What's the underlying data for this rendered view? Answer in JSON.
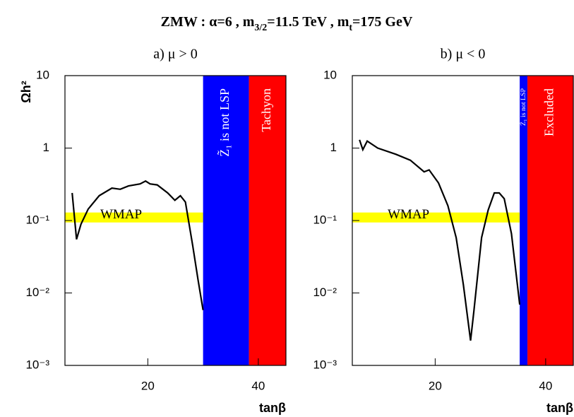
{
  "title": [
    {
      "text": "ZMW : α=6 ,  m"
    },
    {
      "text": "3/2",
      "sub": true
    },
    {
      "text": "=11.5 TeV ,  m"
    },
    {
      "text": "t",
      "sub": true
    },
    {
      "text": "=175 GeV"
    }
  ],
  "chart_data": [
    {
      "type": "line",
      "subtitle": "a)  μ > 0",
      "xlabel": "tanβ",
      "ylabel": "Ωh²",
      "xlim": [
        5,
        45
      ],
      "xticks": [
        20,
        40
      ],
      "ylim": [
        0.001,
        10
      ],
      "log_y": true,
      "yticks": [
        {
          "value": 10,
          "label": "10"
        },
        {
          "value": 1,
          "label": "1"
        },
        {
          "value": 0.1,
          "label": "10⁻¹"
        },
        {
          "value": 0.01,
          "label": "10⁻²"
        },
        {
          "value": 0.001,
          "label": "10⁻³"
        }
      ],
      "x": [
        6.3,
        7.1,
        7.9,
        9.2,
        11.2,
        13.5,
        15,
        16.5,
        18.6,
        19.6,
        20.4,
        21.7,
        23.6,
        24.9,
        25.9,
        26.8,
        28.1,
        29.1,
        30
      ],
      "series": [
        {
          "color": "#000000",
          "values": [
            0.24,
            0.055,
            0.089,
            0.144,
            0.22,
            0.28,
            0.27,
            0.3,
            0.32,
            0.35,
            0.32,
            0.31,
            0.24,
            0.19,
            0.22,
            0.18,
            0.046,
            0.015,
            0.0058
          ]
        }
      ],
      "bands": [
        {
          "label": "Z̃₁ is not LSP",
          "xlim": [
            30,
            38.3
          ],
          "color": "#0000ff"
        },
        {
          "label": "Tachyon",
          "xlim": [
            38.3,
            45
          ],
          "color": "#ff0000"
        }
      ],
      "wmap": {
        "label": "WMAP",
        "xlim": [
          5,
          30
        ],
        "ylim": [
          0.094,
          0.129
        ],
        "color": "#ffff00"
      }
    },
    {
      "type": "line",
      "subtitle": "b)  μ < 0",
      "xlabel": "tanβ",
      "xlim": [
        5,
        45
      ],
      "xticks": [
        20,
        40
      ],
      "ylim": [
        0.001,
        10
      ],
      "log_y": true,
      "yticks": [
        {
          "value": 10,
          "label": "10"
        },
        {
          "value": 1,
          "label": "1"
        },
        {
          "value": 0.1,
          "label": "10⁻¹"
        },
        {
          "value": 0.01,
          "label": "10⁻²"
        },
        {
          "value": 0.001,
          "label": "10⁻³"
        }
      ],
      "x": [
        6.3,
        6.9,
        7.7,
        9.6,
        12.9,
        15.5,
        18,
        18.9,
        20.6,
        22.3,
        23.8,
        25.1,
        26.4,
        27,
        28.4,
        29.6,
        30.7,
        31.6,
        32.5,
        33.8,
        35.3
      ],
      "series": [
        {
          "color": "#000000",
          "values": [
            1.3,
            0.95,
            1.25,
            1.0,
            0.82,
            0.68,
            0.47,
            0.5,
            0.33,
            0.16,
            0.058,
            0.013,
            0.0022,
            0.0055,
            0.058,
            0.14,
            0.24,
            0.24,
            0.2,
            0.066,
            0.0069
          ]
        }
      ],
      "bands": [
        {
          "label": "Z̃₁ is not LSP",
          "xlim": [
            35.3,
            36.7
          ],
          "color": "#0000ff"
        },
        {
          "label": "Excluded",
          "xlim": [
            36.7,
            45
          ],
          "color": "#ff0000"
        }
      ],
      "wmap": {
        "label": "WMAP",
        "xlim": [
          5,
          35.3
        ],
        "ylim": [
          0.094,
          0.129
        ],
        "color": "#ffff00"
      }
    }
  ]
}
